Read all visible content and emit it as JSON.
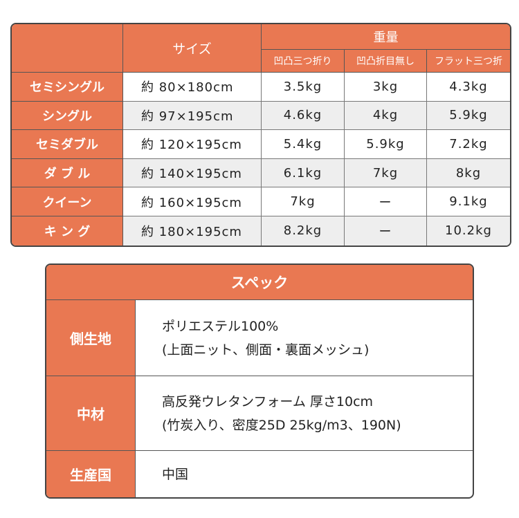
{
  "size_table": {
    "header": {
      "size": "サイズ",
      "weight": "重量",
      "sub": [
        "凹凸三つ折り",
        "凹凸折目無し",
        "フラット三つ折"
      ]
    },
    "rows": [
      {
        "name": "セミシングル",
        "size": "約 80×180cm",
        "w": [
          "3.5kg",
          "3kg",
          "4.3kg"
        ]
      },
      {
        "name": "シングル",
        "size": "約 97×195cm",
        "w": [
          "4.6kg",
          "4kg",
          "5.9kg"
        ]
      },
      {
        "name": "セミダブル",
        "size": "約 120×195cm",
        "w": [
          "5.4kg",
          "5.9kg",
          "7.2kg"
        ]
      },
      {
        "name": "ダ ブ ル",
        "size": "約 140×195cm",
        "w": [
          "6.1kg",
          "7kg",
          "8kg"
        ]
      },
      {
        "name": "クイーン",
        "size": "約 160×195cm",
        "w": [
          "7kg",
          "ー",
          "9.1kg"
        ]
      },
      {
        "name": "キ ン グ",
        "size": "約 180×195cm",
        "w": [
          "8.2kg",
          "ー",
          "10.2kg"
        ]
      }
    ]
  },
  "spec_table": {
    "title": "スペック",
    "rows": [
      {
        "label": "側生地",
        "lines": [
          "ポリエステル100%",
          "(上面ニット、側面・裏面メッシュ)"
        ]
      },
      {
        "label": "中材",
        "lines": [
          "高反発ウレタンフォーム 厚さ10cm",
          "(竹炭入り、密度25D 25kg/m3、190N)"
        ]
      },
      {
        "label": "生産国",
        "lines": [
          "中国"
        ]
      }
    ]
  },
  "colors": {
    "accent": "#e97852",
    "alt_row": "#eeeeee"
  }
}
